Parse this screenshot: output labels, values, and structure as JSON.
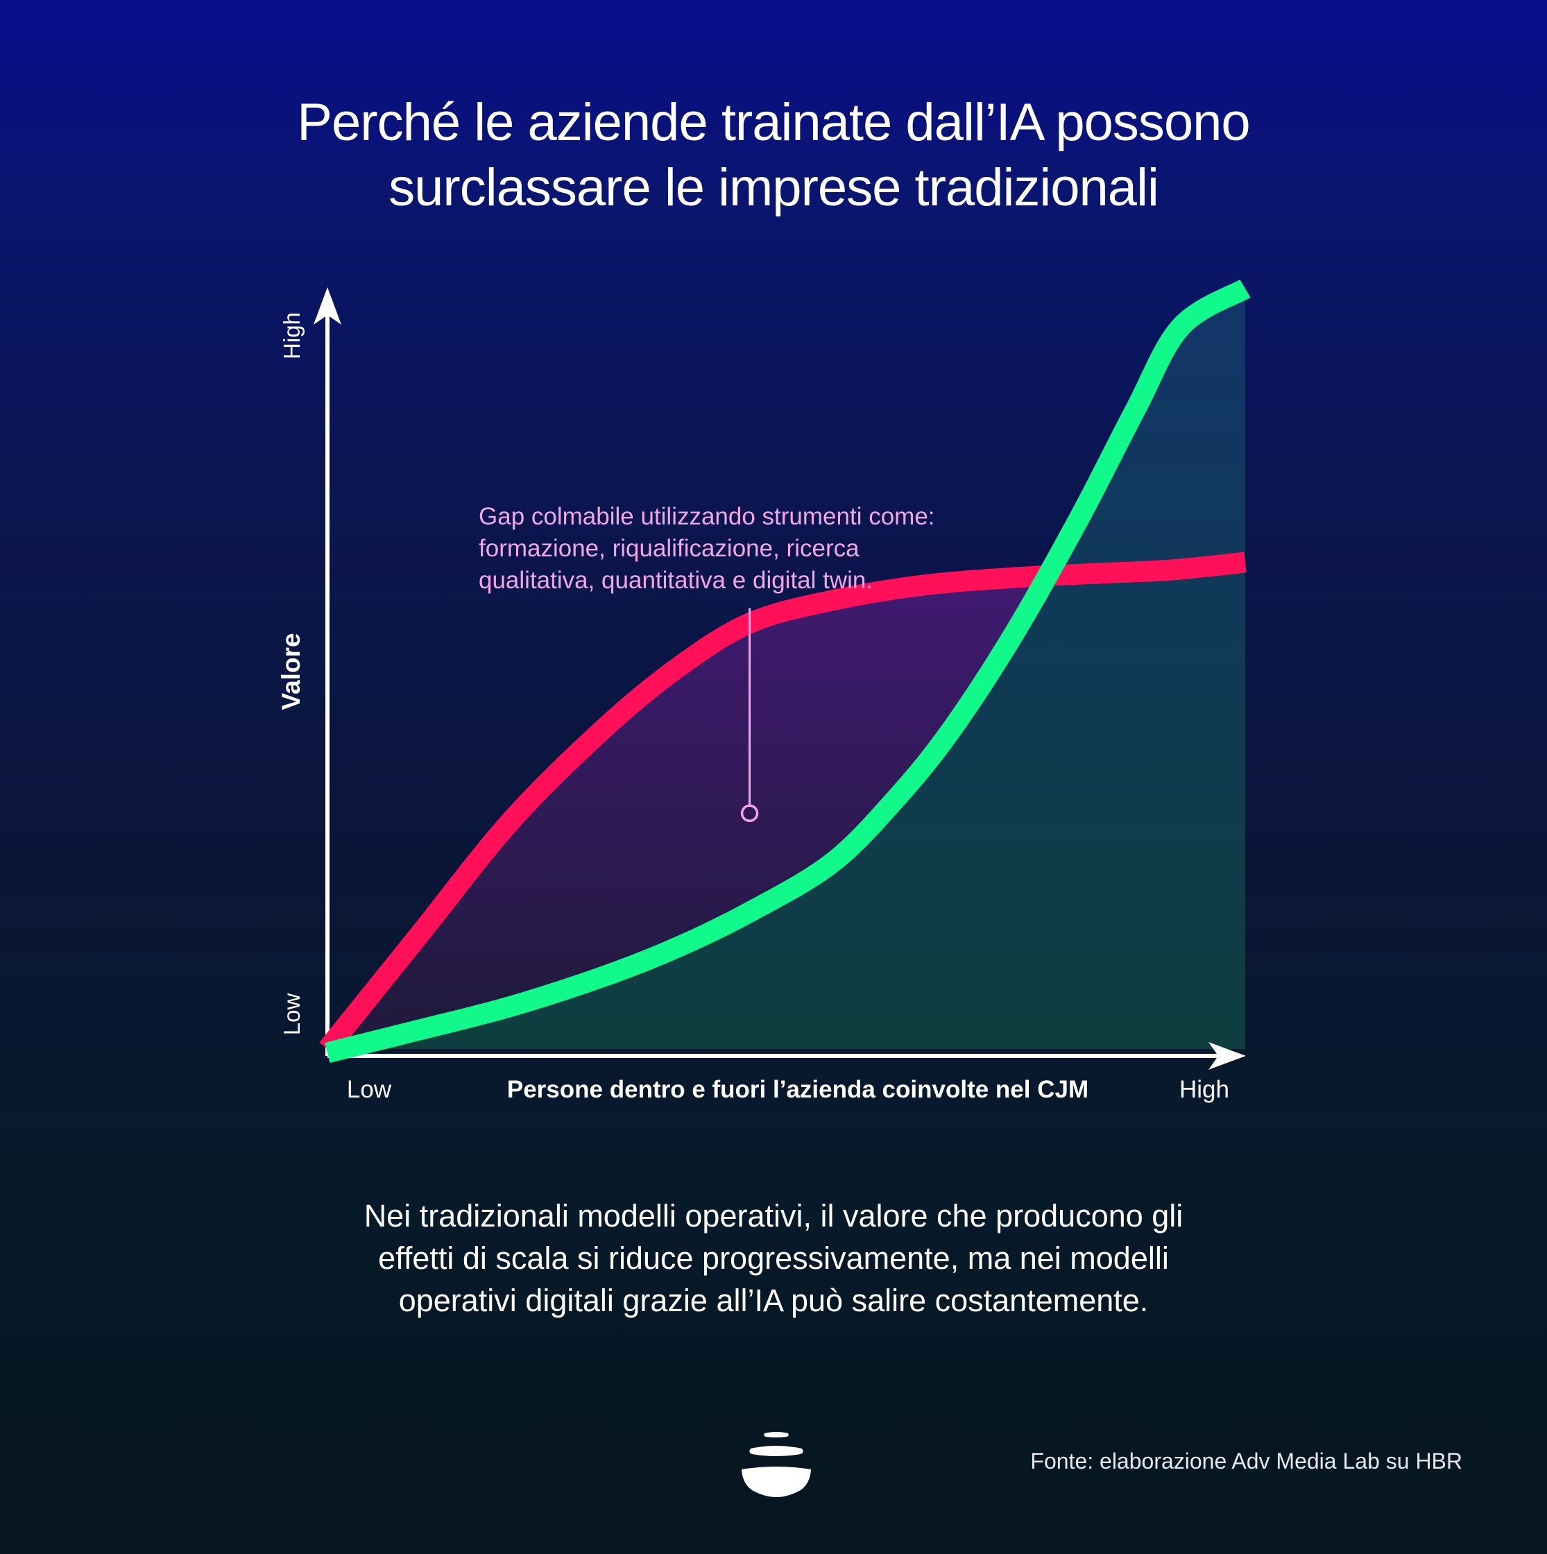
{
  "title": "Perché le aziende trainate dall’IA possono\nsurclassare le imprese tradizionali",
  "caption": "Nei tradizionali modelli operativi, il valore che producono gli\neffetti di scala si riduce progressivamente, ma nei modelli\noperativi digitali grazie all’IA può salire costantemente.",
  "source": "Fonte: elaborazione Adv Media Lab su HBR",
  "logo_icon": "stacked-stones-logo-icon",
  "chart_data": {
    "type": "line",
    "xlabel": "Persone dentro e fuori l’azienda coinvolte nel CJM",
    "ylabel": "Valore",
    "x_tick_labels": [
      "Low",
      "High"
    ],
    "y_tick_labels": [
      "Low",
      "High"
    ],
    "xlim": [
      0,
      100
    ],
    "ylim": [
      0,
      100
    ],
    "grid": false,
    "legend": "none",
    "annotation": {
      "text": "Gap colmabile utilizzando strumenti come:\nformazione, riqualificazione, ricerca\nqualitativa, quantitativa e digital twin.",
      "x": 46,
      "y": 31,
      "line_top_y": 58
    },
    "series": [
      {
        "color": "#ff1059",
        "x": [
          0,
          10,
          20,
          30,
          38,
          46,
          55,
          65,
          75,
          85,
          92,
          100
        ],
        "y": [
          0,
          15,
          30,
          42,
          50,
          56,
          59,
          61,
          62,
          62.6,
          63,
          64
        ]
      },
      {
        "color": "#10f98a",
        "x": [
          0,
          10,
          20,
          30,
          38,
          46,
          55,
          62,
          68,
          75,
          82,
          88,
          93,
          100
        ],
        "y": [
          -0.5,
          2.5,
          5.6,
          9.5,
          13.3,
          18,
          24.5,
          33,
          42,
          55,
          70,
          84,
          95,
          100
        ]
      }
    ],
    "colors": {
      "axes": "#ffffff",
      "annotation": "#f2a6e6",
      "fill_top_green": "#12376a",
      "fill_bottom_green": "#0f4040",
      "fill_gap_top": "#4a1a78",
      "fill_gap_bottom": "#221a3c"
    }
  }
}
